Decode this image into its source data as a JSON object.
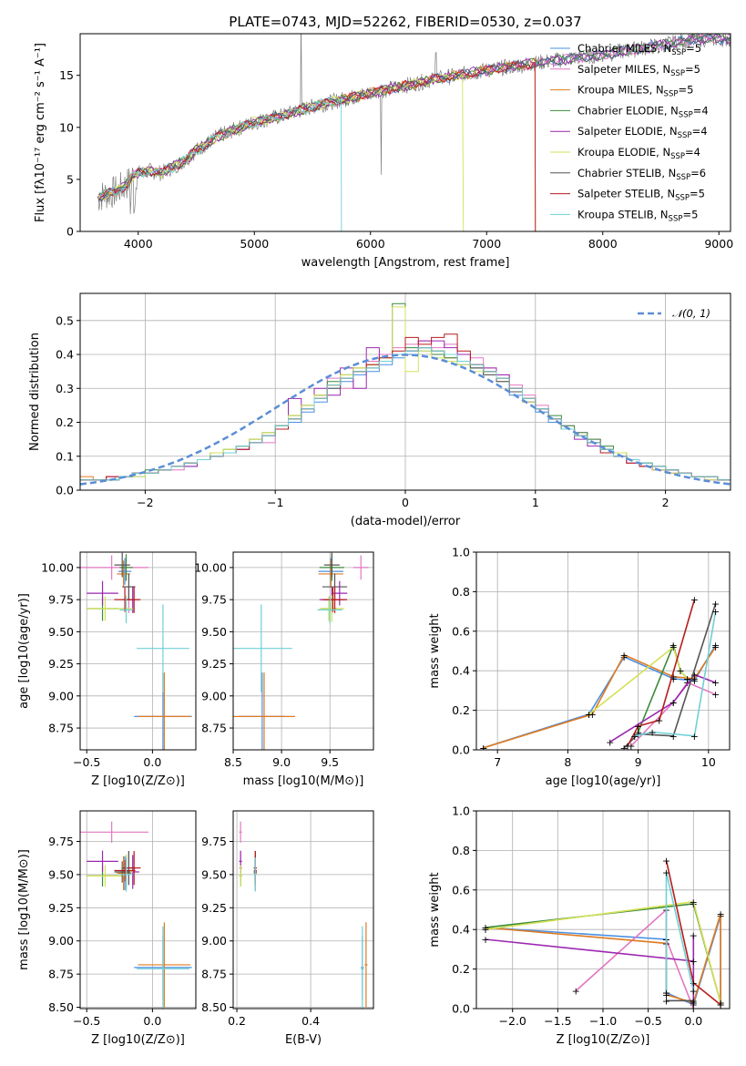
{
  "figure": {
    "title": "PLATE=0743, MJD=52262, FIBERID=0530, z=0.037"
  },
  "colors": {
    "Chabrier MILES": "#4a90e2",
    "Salpeter MILES": "#e377c2",
    "Kroupa MILES": "#e07b22",
    "Chabrier ELODIE": "#3a8a3a",
    "Salpeter ELODIE": "#9c27b0",
    "Kroupa ELODIE": "#d4e157",
    "Chabrier STELIB": "#555555",
    "Salpeter STELIB": "#b71c1c",
    "Kroupa STELIB": "#6fd0d6",
    "data": "#808080",
    "normal": "#5b8ed6",
    "grid": "#b0b0b0"
  },
  "chart_data": [
    {
      "id": "spectrum",
      "type": "line",
      "title": "PLATE=0743, MJD=52262, FIBERID=0530, z=0.037",
      "xlabel": "wavelength [Angstrom, rest frame]",
      "ylabel": "Flux [fλ10⁻¹⁷ erg cm⁻² s⁻¹ A⁻¹]",
      "xlim": [
        3500,
        9100
      ],
      "ylim": [
        0,
        19
      ],
      "xticks": [
        4000,
        5000,
        6000,
        7000,
        8000,
        9000
      ],
      "yticks": [
        0,
        5,
        10,
        15
      ],
      "grid": false,
      "legend_position": "top-right",
      "legend": [
        {
          "label": "Chabrier MILES, N",
          "sub": "SSP",
          "eq": "=5"
        },
        {
          "label": "Salpeter MILES, N",
          "sub": "SSP",
          "eq": "=5"
        },
        {
          "label": "Kroupa MILES, N",
          "sub": "SSP",
          "eq": "=5"
        },
        {
          "label": "Chabrier ELODIE, N",
          "sub": "SSP",
          "eq": "=4"
        },
        {
          "label": "Salpeter ELODIE, N",
          "sub": "SSP",
          "eq": "=4"
        },
        {
          "label": "Kroupa ELODIE, N",
          "sub": "SSP",
          "eq": "=4"
        },
        {
          "label": "Chabrier STELIB, N",
          "sub": "SSP",
          "eq": "=6"
        },
        {
          "label": "Salpeter STELIB, N",
          "sub": "SSP",
          "eq": "=5"
        },
        {
          "label": "Kroupa STELIB, N",
          "sub": "SSP",
          "eq": "=5"
        }
      ],
      "continuum": {
        "x": [
          3650,
          3700,
          3800,
          3900,
          3950,
          4000,
          4100,
          4200,
          4300,
          4400,
          4500,
          4700,
          5000,
          5200,
          5500,
          6000,
          6500,
          7000,
          7500,
          8000,
          8500,
          8800
        ],
        "y": [
          3.2,
          3.5,
          3.8,
          4.5,
          5.3,
          5.6,
          5.8,
          5.6,
          6.2,
          6.8,
          7.8,
          9.2,
          10.5,
          11.0,
          12.0,
          13.3,
          14.5,
          15.5,
          16.3,
          17.0,
          17.9,
          18.5
        ]
      },
      "model_end": {
        "Kroupa STELIB": 5750,
        "Kroupa ELODIE": 6800,
        "Salpeter STELIB": 7420,
        "Kroupa MILES": 7420
      }
    },
    {
      "id": "residuals",
      "type": "step",
      "xlabel": "(data-model)/error",
      "ylabel": "Normed distribution",
      "xlim": [
        -2.5,
        2.5
      ],
      "ylim": [
        0,
        0.58
      ],
      "xticks": [
        -2,
        -1,
        0,
        1,
        2
      ],
      "yticks": [
        0.0,
        0.1,
        0.2,
        0.3,
        0.4,
        0.5
      ],
      "grid": true,
      "legend_position": "top-right",
      "legend_label": "𝒩(0, 1)",
      "bin_width": 0.1,
      "hist": {
        "Chabrier MILES": [
          0.03,
          0.03,
          0.03,
          0.04,
          0.04,
          0.05,
          0.06,
          0.07,
          0.07,
          0.09,
          0.1,
          0.11,
          0.12,
          0.14,
          0.16,
          0.18,
          0.2,
          0.23,
          0.26,
          0.3,
          0.32,
          0.34,
          0.35,
          0.37,
          0.39,
          0.4,
          0.41,
          0.4,
          0.38,
          0.37,
          0.36,
          0.34,
          0.32,
          0.28,
          0.26,
          0.23,
          0.2,
          0.18,
          0.16,
          0.14,
          0.12,
          0.1,
          0.09,
          0.08,
          0.07,
          0.06,
          0.05,
          0.04,
          0.04,
          0.03
        ],
        "Salpeter MILES": [
          0.03,
          0.03,
          0.04,
          0.04,
          0.05,
          0.05,
          0.06,
          0.06,
          0.08,
          0.09,
          0.1,
          0.11,
          0.12,
          0.15,
          0.14,
          0.18,
          0.22,
          0.25,
          0.28,
          0.33,
          0.3,
          0.36,
          0.38,
          0.4,
          0.42,
          0.43,
          0.44,
          0.42,
          0.43,
          0.4,
          0.39,
          0.36,
          0.34,
          0.31,
          0.28,
          0.25,
          0.21,
          0.19,
          0.17,
          0.15,
          0.12,
          0.1,
          0.09,
          0.07,
          0.06,
          0.06,
          0.05,
          0.04,
          0.04,
          0.03
        ],
        "Kroupa MILES": [
          0.04,
          0.03,
          0.03,
          0.04,
          0.05,
          0.05,
          0.06,
          0.07,
          0.08,
          0.09,
          0.1,
          0.11,
          0.13,
          0.14,
          0.16,
          0.18,
          0.21,
          0.24,
          0.27,
          0.31,
          0.33,
          0.35,
          0.36,
          0.38,
          0.4,
          0.41,
          0.42,
          0.41,
          0.39,
          0.38,
          0.37,
          0.35,
          0.33,
          0.29,
          0.27,
          0.24,
          0.21,
          0.18,
          0.16,
          0.14,
          0.12,
          0.1,
          0.09,
          0.07,
          0.06,
          0.05,
          0.05,
          0.04,
          0.04,
          0.03
        ],
        "Chabrier ELODIE": [
          0.03,
          0.03,
          0.03,
          0.04,
          0.05,
          0.06,
          0.06,
          0.07,
          0.08,
          0.09,
          0.11,
          0.12,
          0.13,
          0.15,
          0.17,
          0.19,
          0.22,
          0.25,
          0.28,
          0.32,
          0.34,
          0.36,
          0.37,
          0.39,
          0.55,
          0.42,
          0.42,
          0.4,
          0.39,
          0.38,
          0.36,
          0.35,
          0.33,
          0.3,
          0.27,
          0.24,
          0.22,
          0.19,
          0.17,
          0.15,
          0.13,
          0.11,
          0.09,
          0.08,
          0.07,
          0.06,
          0.05,
          0.04,
          0.04,
          0.03
        ],
        "Salpeter ELODIE": [
          0.03,
          0.03,
          0.04,
          0.04,
          0.05,
          0.05,
          0.06,
          0.07,
          0.07,
          0.09,
          0.1,
          0.11,
          0.12,
          0.14,
          0.16,
          0.19,
          0.27,
          0.24,
          0.3,
          0.28,
          0.36,
          0.3,
          0.42,
          0.38,
          0.4,
          0.41,
          0.44,
          0.44,
          0.42,
          0.4,
          0.37,
          0.36,
          0.34,
          0.3,
          0.26,
          0.24,
          0.21,
          0.18,
          0.15,
          0.13,
          0.12,
          0.1,
          0.08,
          0.07,
          0.06,
          0.05,
          0.05,
          0.04,
          0.03,
          0.03
        ],
        "Kroupa ELODIE": [
          0.03,
          0.03,
          0.03,
          0.04,
          0.04,
          0.05,
          0.06,
          0.07,
          0.08,
          0.09,
          0.11,
          0.12,
          0.13,
          0.15,
          0.17,
          0.19,
          0.22,
          0.25,
          0.28,
          0.31,
          0.34,
          0.36,
          0.37,
          0.39,
          0.54,
          0.35,
          0.41,
          0.39,
          0.38,
          0.37,
          0.35,
          0.34,
          0.32,
          0.29,
          0.26,
          0.24,
          0.21,
          0.18,
          0.16,
          0.14,
          0.12,
          0.11,
          0.09,
          0.08,
          0.06,
          0.05,
          0.05,
          0.04,
          0.03,
          0.03
        ],
        "Chabrier STELIB": [
          0.03,
          0.03,
          0.03,
          0.04,
          0.05,
          0.05,
          0.06,
          0.07,
          0.08,
          0.09,
          0.1,
          0.11,
          0.13,
          0.14,
          0.16,
          0.19,
          0.21,
          0.24,
          0.27,
          0.3,
          0.33,
          0.35,
          0.36,
          0.38,
          0.4,
          0.41,
          0.42,
          0.41,
          0.4,
          0.38,
          0.36,
          0.34,
          0.32,
          0.29,
          0.27,
          0.24,
          0.21,
          0.18,
          0.16,
          0.14,
          0.12,
          0.1,
          0.09,
          0.08,
          0.07,
          0.06,
          0.05,
          0.04,
          0.04,
          0.03
        ],
        "Salpeter STELIB": [
          0.03,
          0.03,
          0.04,
          0.04,
          0.05,
          0.05,
          0.06,
          0.07,
          0.08,
          0.09,
          0.1,
          0.11,
          0.12,
          0.14,
          0.16,
          0.18,
          0.21,
          0.24,
          0.27,
          0.31,
          0.33,
          0.35,
          0.37,
          0.39,
          0.41,
          0.45,
          0.43,
          0.45,
          0.46,
          0.41,
          0.37,
          0.35,
          0.33,
          0.3,
          0.27,
          0.24,
          0.21,
          0.18,
          0.16,
          0.14,
          0.11,
          0.1,
          0.08,
          0.07,
          0.07,
          0.06,
          0.05,
          0.04,
          0.04,
          0.03
        ],
        "Kroupa STELIB": [
          0.03,
          0.03,
          0.03,
          0.04,
          0.05,
          0.05,
          0.06,
          0.07,
          0.08,
          0.09,
          0.1,
          0.11,
          0.13,
          0.14,
          0.16,
          0.19,
          0.21,
          0.24,
          0.27,
          0.31,
          0.33,
          0.35,
          0.36,
          0.38,
          0.4,
          0.41,
          0.42,
          0.41,
          0.4,
          0.38,
          0.37,
          0.35,
          0.33,
          0.3,
          0.27,
          0.24,
          0.21,
          0.18,
          0.16,
          0.14,
          0.12,
          0.1,
          0.09,
          0.08,
          0.07,
          0.06,
          0.05,
          0.04,
          0.04,
          0.03
        ]
      }
    },
    {
      "id": "age-vs-Z",
      "type": "scatter",
      "xlabel": "Z [log10(Z/Z⊙)]",
      "ylabel": "age  [log10(age/yr)]",
      "xlim": [
        -0.55,
        0.33
      ],
      "ylim": [
        8.58,
        10.12
      ],
      "xticks": [
        -0.5,
        0.0
      ],
      "yticks": [
        8.75,
        9.0,
        9.25,
        9.5,
        9.75,
        10.0
      ],
      "grid": true
    },
    {
      "id": "age-vs-mass",
      "type": "scatter",
      "xlabel": "mass [log10(M/M⊙)]",
      "xlim": [
        8.5,
        9.95
      ],
      "ylim": [
        8.58,
        10.12
      ],
      "xticks": [
        8.5,
        9.0,
        9.5
      ],
      "yticks": [
        8.75,
        9.0,
        9.25,
        9.5,
        9.75,
        10.0
      ],
      "grid": true
    },
    {
      "id": "weight-vs-age",
      "type": "line",
      "xlabel": "age  [log10(age/yr)]",
      "ylabel": "mass weight",
      "xlim": [
        6.7,
        10.3
      ],
      "ylim": [
        0,
        1.0
      ],
      "xticks": [
        7,
        8,
        9,
        10
      ],
      "yticks": [
        0.0,
        0.2,
        0.4,
        0.6,
        0.8,
        1.0
      ],
      "grid": true
    },
    {
      "id": "mass-vs-Z",
      "type": "scatter",
      "xlabel": "Z [log10(Z/Z⊙)]",
      "ylabel": "mass [log10(M/M⊙)]",
      "xlim": [
        -0.55,
        0.33
      ],
      "ylim": [
        8.49,
        9.98
      ],
      "xticks": [
        -0.5,
        0.0
      ],
      "yticks": [
        8.5,
        8.75,
        9.0,
        9.25,
        9.5,
        9.75
      ],
      "grid": true
    },
    {
      "id": "mass-vs-ebv",
      "type": "scatter",
      "xlabel": "E(B-V)",
      "xlim": [
        0.19,
        0.57
      ],
      "ylim": [
        8.49,
        9.98
      ],
      "xticks": [
        0.2,
        0.4
      ],
      "yticks": [
        8.5,
        8.75,
        9.0,
        9.25,
        9.5,
        9.75
      ],
      "grid": true
    },
    {
      "id": "weight-vs-Z",
      "type": "line",
      "xlabel": "Z [log10(Z/Z⊙)]",
      "ylabel": "mass weight",
      "xlim": [
        -2.4,
        0.4
      ],
      "ylim": [
        0,
        1.0
      ],
      "xticks": [
        -2.0,
        -1.5,
        -1.0,
        -0.5,
        0.0
      ],
      "yticks": [
        0.0,
        0.2,
        0.4,
        0.6,
        0.8,
        1.0
      ],
      "grid": true
    }
  ],
  "fits": {
    "Chabrier MILES": {
      "age": [
        8.84,
        9.97
      ],
      "age_err": [
        0.18,
        0.08
      ],
      "mass": [
        8.8,
        9.51
      ],
      "mass_err": [
        0.15,
        0.08
      ],
      "Z": [
        0.08,
        -0.21
      ],
      "Z_err": [
        0.22,
        0.05
      ],
      "ebv": [
        0.54,
        0.25
      ],
      "ages": [
        6.8,
        8.3,
        8.8,
        9.5,
        9.8,
        10.1
      ],
      "weights": [
        0.01,
        0.18,
        0.47,
        0.36,
        0.35,
        0.53
      ],
      "Zs": [
        -2.3,
        -0.3,
        -0.3,
        0.0,
        0.3,
        0.3
      ],
      "zw": [
        0.41,
        0.35,
        0.08,
        0.02,
        0.47,
        0.03
      ]
    },
    "Salpeter MILES": {
      "age": [
        10.0,
        9.75
      ],
      "age_err": [
        0.05,
        0.08
      ],
      "mass": [
        9.82,
        9.55
      ],
      "mass_err": [
        0.05,
        0.08
      ],
      "Z": [
        -0.31,
        -0.18
      ],
      "Z_err": [
        0.28,
        0.05
      ],
      "ebv": [
        0.21,
        0.21
      ],
      "ages": [
        8.9,
        9.5,
        9.7,
        10.1
      ],
      "weights": [
        0.02,
        0.24,
        0.34,
        0.28
      ],
      "Zs": [
        -1.3,
        -0.3,
        -0.3,
        0.0
      ],
      "zw": [
        0.09,
        0.5,
        0.35,
        0.0
      ]
    },
    "Kroupa MILES": {
      "age": [
        8.84,
        9.95
      ],
      "age_err": [
        0.18,
        0.08
      ],
      "mass": [
        8.82,
        9.51
      ],
      "mass_err": [
        0.2,
        0.08
      ],
      "Z": [
        0.09,
        -0.22
      ],
      "Z_err": [
        0.2,
        0.05
      ],
      "ebv": [
        0.55,
        0.25
      ],
      "ages": [
        6.8,
        8.35,
        8.8,
        9.5,
        9.8,
        10.1
      ],
      "weights": [
        0.01,
        0.18,
        0.48,
        0.37,
        0.36,
        0.52
      ],
      "Zs": [
        -2.3,
        -0.3,
        -0.3,
        0.0,
        0.3,
        0.3
      ],
      "zw": [
        0.41,
        0.33,
        0.07,
        0.03,
        0.48,
        0.02
      ]
    },
    "Chabrier ELODIE": {
      "age": [
        9.68,
        10.0
      ],
      "age_err": [
        0.05,
        0.08
      ],
      "mass": [
        9.49,
        9.52
      ],
      "mass_err": [
        0.05,
        0.08
      ],
      "Z": [
        -0.38,
        -0.2
      ],
      "Z_err": [
        0.12,
        0.05
      ],
      "ebv": [
        0.21,
        0.25
      ],
      "ages": [
        9.0,
        9.5,
        9.6,
        9.7
      ],
      "weights": [
        0.09,
        0.53,
        0.4,
        0.36
      ],
      "Zs": [
        -2.3,
        0.0,
        0.3
      ],
      "zw": [
        0.41,
        0.53,
        0.03
      ]
    },
    "Salpeter ELODIE": {
      "age": [
        9.8,
        9.75
      ],
      "age_err": [
        0.05,
        0.08
      ],
      "mass": [
        9.6,
        9.52
      ],
      "mass_err": [
        0.05,
        0.08
      ],
      "Z": [
        -0.38,
        -0.15
      ],
      "Z_err": [
        0.12,
        0.05
      ],
      "ebv": [
        0.21,
        0.25
      ],
      "ages": [
        8.6,
        9.5,
        9.8,
        10.1
      ],
      "weights": [
        0.04,
        0.24,
        0.38,
        0.34
      ],
      "Zs": [
        -2.3,
        0.0,
        0.0,
        0.0
      ],
      "zw": [
        0.35,
        0.24,
        0.37,
        0.03
      ]
    },
    "Kroupa ELODIE": {
      "age": [
        9.68,
        9.68
      ],
      "age_err": [
        0.05,
        0.08
      ],
      "mass": [
        9.49,
        9.52
      ],
      "mass_err": [
        0.05,
        0.08
      ],
      "Z": [
        -0.36,
        -0.2
      ],
      "Z_err": [
        0.14,
        0.05
      ],
      "ebv": [
        0.21,
        0.25
      ],
      "ages": [
        8.3,
        9.5,
        9.6,
        9.7
      ],
      "weights": [
        0.18,
        0.52,
        0.4,
        0.36
      ],
      "Zs": [
        -2.3,
        0.0,
        0.3
      ],
      "zw": [
        0.4,
        0.54,
        0.03
      ]
    },
    "Chabrier STELIB": {
      "age": [
        10.02,
        9.85
      ],
      "age_err": [
        0.05,
        0.08
      ],
      "mass": [
        9.52,
        9.55
      ],
      "mass_err": [
        0.05,
        0.08
      ],
      "Z": [
        -0.23,
        -0.18
      ],
      "Z_err": [
        0.06,
        0.05
      ],
      "ebv": [
        0.25,
        0.25
      ],
      "ages": [
        8.8,
        9.0,
        9.5,
        10.1
      ],
      "weights": [
        0.01,
        0.08,
        0.07,
        0.74
      ],
      "Zs": [
        -0.3,
        0.0
      ],
      "zw": [
        0.04,
        0.04
      ]
    },
    "Salpeter STELIB": {
      "age": [
        9.75,
        9.75
      ],
      "age_err": [
        0.05,
        0.08
      ],
      "mass": [
        9.53,
        9.55
      ],
      "mass_err": [
        0.05,
        0.08
      ],
      "Z": [
        -0.21,
        -0.14
      ],
      "Z_err": [
        0.08,
        0.05
      ],
      "ebv": [
        0.25,
        0.25
      ],
      "ages": [
        8.85,
        9.0,
        9.3,
        9.8
      ],
      "weights": [
        0.02,
        0.12,
        0.15,
        0.76
      ],
      "Zs": [
        -0.3,
        0.0,
        0.3
      ],
      "zw": [
        0.75,
        0.13,
        0.02
      ]
    },
    "Kroupa STELIB": {
      "age": [
        9.37,
        9.67
      ],
      "age_err": [
        0.18,
        0.08
      ],
      "mass": [
        8.79,
        9.5
      ],
      "mass_err": [
        0.2,
        0.08
      ],
      "Z": [
        0.08,
        -0.2
      ],
      "Z_err": [
        0.2,
        0.05
      ],
      "ebv": [
        0.54,
        0.25
      ],
      "ages": [
        8.95,
        9.2,
        9.8,
        10.1
      ],
      "weights": [
        0.07,
        0.09,
        0.07,
        0.7
      ],
      "Zs": [
        -0.3,
        -0.3,
        0.0
      ],
      "zw": [
        0.08,
        0.69,
        0.09
      ]
    }
  }
}
